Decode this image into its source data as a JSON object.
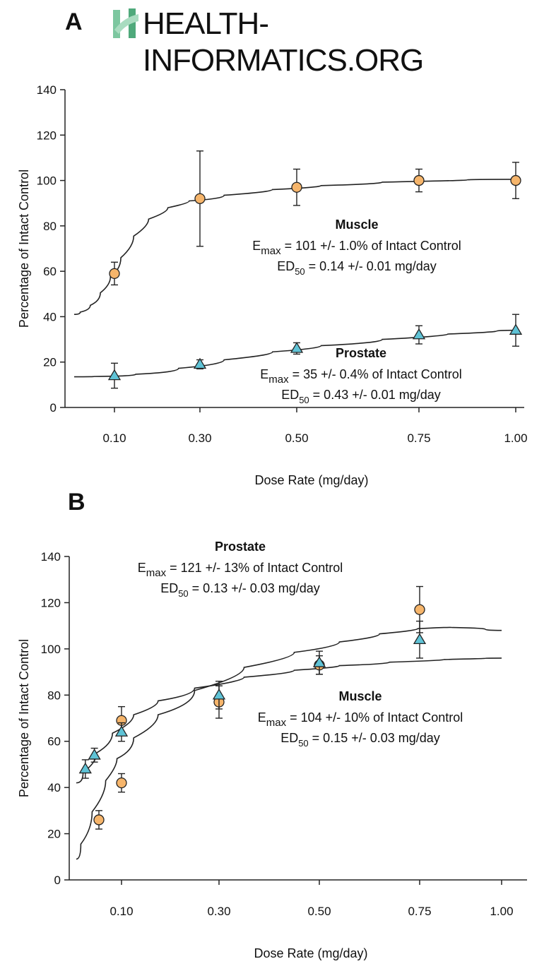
{
  "logo": {
    "text": "HEALTH-INFORMATICS.ORG"
  },
  "colors": {
    "muscle": "#F6B56B",
    "prostate": "#5FC3D6",
    "stroke": "#222222",
    "logo_green": "#7DC7A0"
  },
  "chart_data": [
    {
      "panel": "A",
      "type": "scatter",
      "x_ticks": [
        "0.10",
        "0.30",
        "0.50",
        "0.75",
        "1.00"
      ],
      "xlabel": "Dose Rate (mg/day)",
      "ylabel": "Percentage of Intact Control",
      "ylim": [
        0,
        140
      ],
      "y_ticks": [
        "0",
        "20",
        "40",
        "60",
        "80",
        "100",
        "120",
        "140"
      ],
      "series": [
        {
          "name": "Muscle",
          "marker": "circle",
          "points": [
            {
              "x": 0.1,
              "y": 59,
              "err": 5
            },
            {
              "x": 0.3,
              "y": 92,
              "err": 21
            },
            {
              "x": 0.5,
              "y": 97,
              "err": 8
            },
            {
              "x": 0.75,
              "y": 100,
              "err": 5
            },
            {
              "x": 1.0,
              "y": 100,
              "err": 8
            }
          ],
          "fit": [
            [
              0.0,
              41
            ],
            [
              0.03,
              43
            ],
            [
              0.05,
              47
            ],
            [
              0.08,
              54
            ],
            [
              0.1,
              61
            ],
            [
              0.13,
              71
            ],
            [
              0.16,
              80
            ],
            [
              0.2,
              86
            ],
            [
              0.25,
              90
            ],
            [
              0.3,
              92
            ],
            [
              0.4,
              95
            ],
            [
              0.5,
              97
            ],
            [
              0.6,
              98.5
            ],
            [
              0.75,
              100
            ],
            [
              1.0,
              100.5
            ]
          ],
          "annotation": {
            "name": "Muscle",
            "emax_prefix": "E",
            "emax_sub": "max",
            "emax_rest": " = 101 +/- 1.0% of Intact Control",
            "ed_prefix": "ED",
            "ed_sub": "50",
            "ed_rest": " = 0.14 +/- 0.01 mg/day"
          }
        },
        {
          "name": "Prostate",
          "marker": "triangle",
          "points": [
            {
              "x": 0.1,
              "y": 14,
              "err": 5.5
            },
            {
              "x": 0.3,
              "y": 19,
              "err": 2
            },
            {
              "x": 0.5,
              "y": 26,
              "err": 2.5
            },
            {
              "x": 0.75,
              "y": 32,
              "err": 4
            },
            {
              "x": 1.0,
              "y": 34,
              "err": 7
            }
          ],
          "fit": [
            [
              0.0,
              13.5
            ],
            [
              0.1,
              13.8
            ],
            [
              0.2,
              15.5
            ],
            [
              0.3,
              19
            ],
            [
              0.4,
              23
            ],
            [
              0.5,
              26
            ],
            [
              0.6,
              28.5
            ],
            [
              0.75,
              31.5
            ],
            [
              0.9,
              33.2
            ],
            [
              1.0,
              34
            ]
          ],
          "annotation": {
            "name": "Prostate",
            "emax_prefix": "E",
            "emax_sub": "max",
            "emax_rest": " = 35 +/- 0.4% of Intact Control",
            "ed_prefix": "ED",
            "ed_sub": "50",
            "ed_rest": " = 0.43 +/- 0.01 mg/day"
          }
        }
      ]
    },
    {
      "panel": "B",
      "type": "scatter",
      "x_ticks": [
        "0.10",
        "0.30",
        "0.50",
        "0.75",
        "1.00"
      ],
      "xlabel": "Dose Rate (mg/day)",
      "ylabel": "Percentage of Intact Control",
      "ylim": [
        0,
        140
      ],
      "y_ticks": [
        "0",
        "20",
        "40",
        "60",
        "80",
        "100",
        "120",
        "140"
      ],
      "series": [
        {
          "name": "Prostate",
          "marker": "circle",
          "points": [
            {
              "x": 0.05,
              "y": 26,
              "err": 4
            },
            {
              "x": 0.1,
              "y": 42,
              "err": 4
            },
            {
              "x": 0.1,
              "y": 69,
              "err": 6
            },
            {
              "x": 0.3,
              "y": 77,
              "err": 7
            },
            {
              "x": 0.5,
              "y": 93,
              "err": 4
            },
            {
              "x": 0.75,
              "y": 117,
              "err": 10
            }
          ],
          "fit": [
            [
              0.0,
              9
            ],
            [
              0.02,
              22
            ],
            [
              0.05,
              37
            ],
            [
              0.08,
              49
            ],
            [
              0.1,
              56
            ],
            [
              0.15,
              67
            ],
            [
              0.2,
              76
            ],
            [
              0.3,
              88
            ],
            [
              0.4,
              96
            ],
            [
              0.5,
              101
            ],
            [
              0.6,
              105
            ],
            [
              0.7,
              108
            ],
            [
              0.8,
              109.5
            ],
            [
              0.9,
              109
            ],
            [
              1.0,
              108
            ]
          ],
          "annotation": {
            "name": "Prostate",
            "emax_prefix": "E",
            "emax_sub": "max",
            "emax_rest": " = 121 +/- 13% of Intact Control",
            "ed_prefix": "ED",
            "ed_sub": "50",
            "ed_rest": " = 0.13 +/- 0.03 mg/day"
          }
        },
        {
          "name": "Muscle",
          "marker": "triangle",
          "points": [
            {
              "x": 0.02,
              "y": 48,
              "err": 4
            },
            {
              "x": 0.04,
              "y": 54,
              "err": 3
            },
            {
              "x": 0.1,
              "y": 64,
              "err": 4
            },
            {
              "x": 0.3,
              "y": 80,
              "err": 6
            },
            {
              "x": 0.5,
              "y": 94,
              "err": 5
            },
            {
              "x": 0.75,
              "y": 104,
              "err": 8
            }
          ],
          "fit": [
            [
              0.0,
              42
            ],
            [
              0.03,
              51
            ],
            [
              0.06,
              59
            ],
            [
              0.1,
              68
            ],
            [
              0.15,
              75
            ],
            [
              0.2,
              80
            ],
            [
              0.3,
              86
            ],
            [
              0.4,
              89.5
            ],
            [
              0.5,
              92
            ],
            [
              0.6,
              93.5
            ],
            [
              0.75,
              95
            ],
            [
              0.9,
              95.8
            ],
            [
              1.0,
              96
            ]
          ],
          "annotation": {
            "name": "Muscle",
            "emax_prefix": "E",
            "emax_sub": "max",
            "emax_rest": " = 104 +/- 10% of Intact Control",
            "ed_prefix": "ED",
            "ed_sub": "50",
            "ed_rest": " = 0.15 +/- 0.03 mg/day"
          }
        }
      ]
    }
  ]
}
